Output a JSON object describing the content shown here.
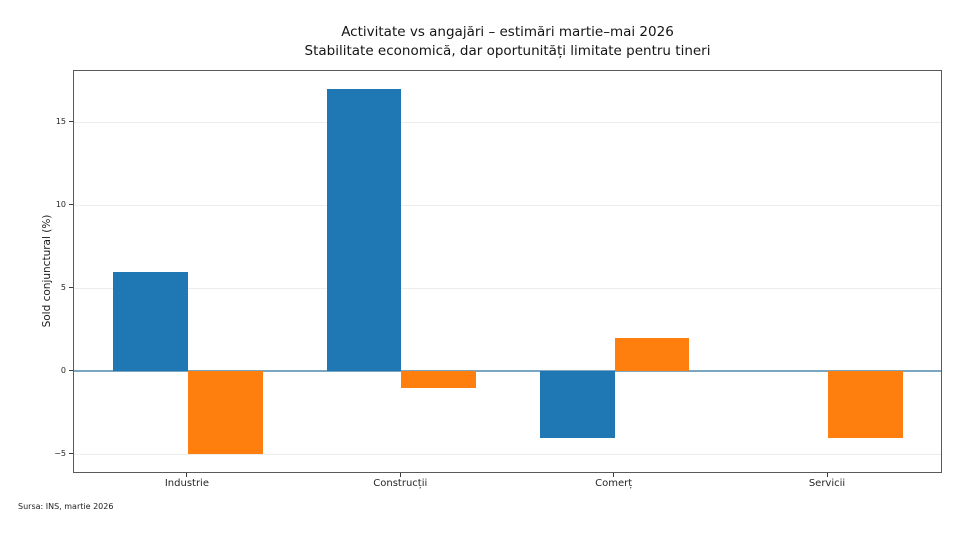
{
  "chart_data": {
    "type": "bar",
    "title": "Activitate vs angajări – estimări martie–mai 2026",
    "subtitle": "Stabilitate economică, dar oportunități limitate pentru tineri",
    "xlabel": "",
    "ylabel": "Sold conjunctural (%)",
    "source": "Sursa: INS, martie 2026",
    "categories": [
      "Industrie",
      "Construcții",
      "Comerț",
      "Servicii"
    ],
    "series": [
      {
        "color": "#1f77b4",
        "values": [
          6,
          17,
          -4,
          0
        ]
      },
      {
        "color": "#ff7f0e",
        "values": [
          -5,
          -1,
          2,
          -4
        ]
      }
    ],
    "yticks": [
      -5,
      0,
      5,
      10,
      15
    ],
    "ylim": [
      -6.2,
      18.1
    ],
    "bar_width": 0.35,
    "grid": true,
    "legend_position": "none",
    "zero_line_color": "#7aa6c2",
    "grid_color": "#ededed"
  }
}
